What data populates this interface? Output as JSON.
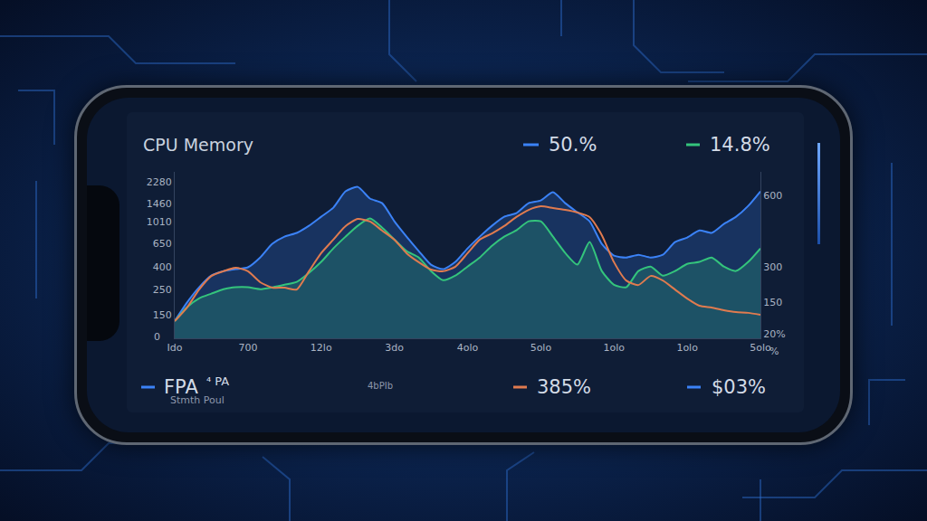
{
  "chart_data": {
    "type": "line",
    "title": "CPU Memory",
    "categories": [
      "Ido",
      null,
      null,
      null,
      null,
      null,
      "700",
      null,
      null,
      null,
      null,
      null,
      "12lo",
      null,
      null,
      null,
      null,
      null,
      "3do",
      null,
      null,
      null,
      null,
      null,
      "4olo",
      null,
      null,
      null,
      null,
      null,
      "5olo",
      null,
      null,
      null,
      null,
      null,
      "1olo",
      null,
      null,
      null,
      null,
      null,
      "1olo",
      null,
      null,
      null,
      null,
      null,
      "5olo"
    ],
    "series": [
      {
        "name": "50.%",
        "color": "#3b82f6",
        "values": [
          131,
          191,
          262,
          333,
          366,
          380,
          395,
          483,
          639,
          741,
          800,
          926,
          1115,
          1342,
          1876,
          2057,
          1620,
          1473,
          1015,
          741,
          551,
          417,
          380,
          441,
          582,
          741,
          926,
          1115,
          1200,
          1473,
          1555,
          1842,
          1473,
          1222,
          1015,
          639,
          501,
          483,
          511,
          483,
          511,
          663,
          727,
          843,
          800,
          960,
          1115,
          1393,
          1876
        ]
      },
      {
        "name": "14.8%",
        "color": "#34c47c",
        "values": [
          131,
          174,
          209,
          230,
          252,
          262,
          262,
          252,
          262,
          276,
          293,
          352,
          441,
          582,
          741,
          926,
          1074,
          891,
          700,
          551,
          483,
          366,
          303,
          333,
          401,
          483,
          615,
          741,
          843,
          1015,
          1015,
          741,
          530,
          417,
          663,
          366,
          276,
          262,
          366,
          401,
          333,
          366,
          424,
          441,
          483,
          401,
          366,
          441,
          582
        ]
      },
      {
        "name": "385%",
        "color": "#e07b4f",
        "axis": "y2",
        "values": [
          72,
          129,
          205,
          262,
          282,
          297,
          282,
          236,
          213,
          213,
          205,
          282,
          358,
          415,
          472,
          502,
          491,
          453,
          415,
          358,
          320,
          289,
          282,
          301,
          358,
          415,
          441,
          472,
          510,
          540,
          555,
          548,
          540,
          529,
          510,
          434,
          320,
          243,
          224,
          262,
          243,
          205,
          167,
          137,
          129,
          118,
          110,
          107,
          99
        ]
      }
    ],
    "log": "y",
    "ylim": [
      92,
      2800
    ],
    "yticks": [
      150,
      250,
      400,
      650,
      1010,
      1460,
      2280
    ],
    "y2lim": [
      0,
      700
    ],
    "y2ticks": [
      {
        "value": 20,
        "label": "20%"
      },
      150,
      300,
      600
    ],
    "grid": false,
    "annotations": [
      {
        "text": "FPA",
        "color": "#3b82f6"
      },
      {
        "text": "⁴ PA"
      },
      {
        "text": "Stmth Poul"
      },
      {
        "text": "4bPIb"
      },
      {
        "text": "$03%",
        "color": "#3b82f6"
      },
      {
        "text": "0"
      },
      {
        "text": "%"
      }
    ]
  }
}
